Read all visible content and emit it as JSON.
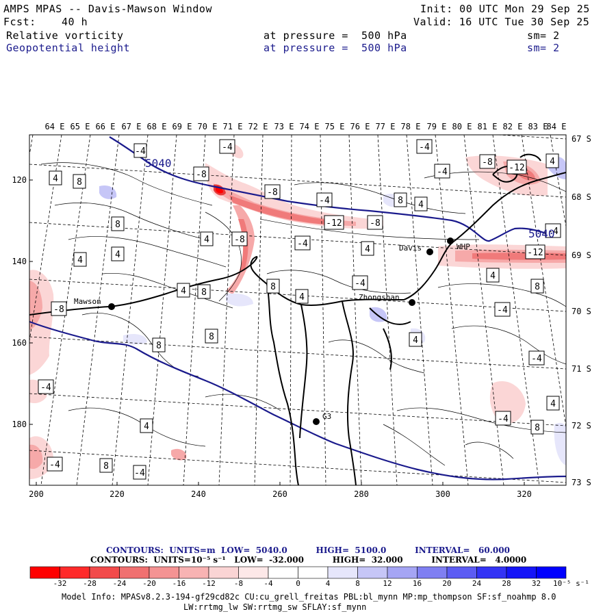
{
  "header": {
    "model": "AMPS MPAS -- Davis-Mawson Window",
    "init": "Init: 00 UTC Mon 29 Sep 25",
    "fcst_label": "Fcst:",
    "fcst_value": "40 h",
    "valid": "Valid: 16 UTC Tue 30 Sep 25",
    "field1": {
      "name": "Relative vorticity",
      "level": "at pressure =  500 hPa",
      "smooth": "sm= 2"
    },
    "field2": {
      "name": "Geopotential height",
      "level": "at pressure =  500 hPa",
      "smooth": "sm= 2"
    }
  },
  "map": {
    "lon_labels": [
      "64 E",
      "65 E",
      "66 E",
      "67 E",
      "68 E",
      "69 E",
      "70 E",
      "71 E",
      "72 E",
      "73 E",
      "74 E",
      "75 E",
      "76 E",
      "77 E",
      "78 E",
      "79 E",
      "80 E",
      "81 E",
      "82 E",
      "83 E",
      "84 E"
    ],
    "lat_labels": [
      "67 S",
      "68 S",
      "69 S",
      "70 S",
      "71 S",
      "72 S",
      "73 S"
    ],
    "x_ticks": [
      "200",
      "220",
      "240",
      "260",
      "280",
      "300",
      "320"
    ],
    "y_ticks": [
      "120",
      "140",
      "160",
      "180"
    ],
    "stations": [
      {
        "name": "Mawson"
      },
      {
        "name": "Davis"
      },
      {
        "name": "WHP"
      },
      {
        "name": "Zhongshan"
      },
      {
        "name": "G3"
      }
    ],
    "height_labels": [
      "5040",
      "5040"
    ],
    "vort_labels": [
      "-4",
      "-4",
      "-4",
      "-8",
      "-12",
      "4",
      "4",
      "8",
      "-4",
      "-8",
      "8",
      "4",
      "-8",
      "-12",
      "-8",
      "8",
      "4",
      "-4",
      "4",
      "4",
      "8",
      "-8",
      "-4",
      "4",
      "-4",
      "8",
      "4",
      "8",
      "-4",
      "4",
      "4",
      "4",
      "-8",
      "8",
      "-4",
      "-12",
      "-4",
      "4",
      "8",
      "-4",
      "-4",
      "8",
      "4",
      "-4",
      "-4",
      "8",
      "4",
      "-4",
      "4",
      "-4",
      "4",
      "4",
      "-8",
      "4"
    ]
  },
  "contour_info": {
    "line1": "CONTOURS:  UNITS=m  LOW=  5040.0          HIGH=  5100.0          INTERVAL=   60.000",
    "line2": "CONTOURS:  UNITS=10⁻⁵ s⁻¹   LOW=  -32.000          HIGH=  32.000          INTERVAL=   4.0000"
  },
  "colorbar": {
    "labels": [
      "-32",
      "-28",
      "-24",
      "-20",
      "-16",
      "-12",
      "-8",
      "-4",
      "0",
      "4",
      "8",
      "12",
      "16",
      "20",
      "24",
      "28",
      "32"
    ],
    "unit": "10⁻⁵ s⁻¹",
    "colors": [
      "#ff0000",
      "#ff2a2a",
      "#f24a4a",
      "#f07070",
      "#f49393",
      "#f8b3b3",
      "#fad4d4",
      "#fde8e8",
      "#ffffff",
      "#ffffff",
      "#e6e6fb",
      "#c6c6f7",
      "#a5a5f4",
      "#7f7ff2",
      "#5c5cf3",
      "#3333f5",
      "#0000ff"
    ]
  },
  "footer": {
    "line1": "Model Info: MPASv8.2.3-194-gf29cd82c CU:cu_grell_freitas PBL:bl_mynn MP:mp_thompson SF:sf_noahmp 8.0",
    "line2": "LW:rrtmg_lw SW:rrtmg_sw SFLAY:sf_mynn"
  },
  "colors": {
    "height_line": "#1a1a8c",
    "coast": "#000000"
  }
}
